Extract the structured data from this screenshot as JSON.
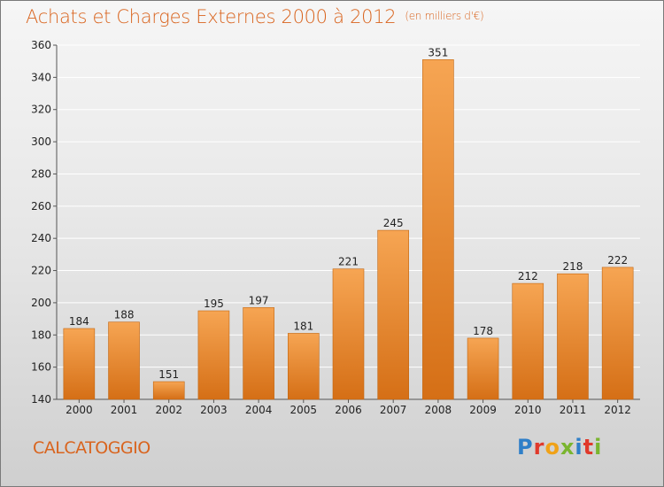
{
  "header": {
    "title": "Achats et Charges Externes 2000 à 2012",
    "unit_note": "(en milliers d'€)"
  },
  "footer": {
    "commune": "CALCATOGGIO",
    "brand": "Proxiti",
    "brand_letter_colors": [
      "#2f7fc8",
      "#e0392b",
      "#f0a218",
      "#7ab52f",
      "#2f7fc8",
      "#e0392b",
      "#7ab52f"
    ]
  },
  "colors": {
    "bar_top": "#f6a553",
    "bar_bottom": "#d56f16",
    "accent": "#d9641e"
  },
  "chart_data": {
    "type": "bar",
    "title": "Achats et Charges Externes 2000 à 2012",
    "subtitle": "(en milliers d'€)",
    "xlabel": "",
    "ylabel": "",
    "categories": [
      "2000",
      "2001",
      "2002",
      "2003",
      "2004",
      "2005",
      "2006",
      "2007",
      "2008",
      "2009",
      "2010",
      "2011",
      "2012"
    ],
    "values": [
      184,
      188,
      151,
      195,
      197,
      181,
      221,
      245,
      351,
      178,
      212,
      218,
      222
    ],
    "ylim": [
      140,
      360
    ],
    "yticks": [
      140,
      160,
      180,
      200,
      220,
      240,
      260,
      280,
      300,
      320,
      340,
      360
    ],
    "grid": true,
    "data_labels": true
  }
}
